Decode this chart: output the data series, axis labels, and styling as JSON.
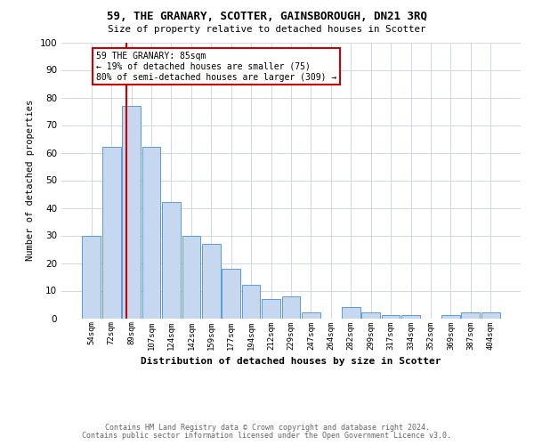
{
  "title": "59, THE GRANARY, SCOTTER, GAINSBOROUGH, DN21 3RQ",
  "subtitle": "Size of property relative to detached houses in Scotter",
  "xlabel": "Distribution of detached houses by size in Scotter",
  "ylabel": "Number of detached properties",
  "footnote1": "Contains HM Land Registry data © Crown copyright and database right 2024.",
  "footnote2": "Contains public sector information licensed under the Open Government Licence v3.0.",
  "categories": [
    "54sqm",
    "72sqm",
    "89sqm",
    "107sqm",
    "124sqm",
    "142sqm",
    "159sqm",
    "177sqm",
    "194sqm",
    "212sqm",
    "229sqm",
    "247sqm",
    "264sqm",
    "282sqm",
    "299sqm",
    "317sqm",
    "334sqm",
    "352sqm",
    "369sqm",
    "387sqm",
    "404sqm"
  ],
  "values": [
    30,
    62,
    77,
    62,
    42,
    30,
    27,
    18,
    12,
    7,
    8,
    2,
    0,
    4,
    2,
    1,
    1,
    0,
    1,
    2,
    2
  ],
  "bar_color": "#c5d8f0",
  "bar_edge_color": "#5b9bd5",
  "reference_line_color": "#cc0000",
  "annotation_line1": "59 THE GRANARY: 85sqm",
  "annotation_line2": "← 19% of detached houses are smaller (75)",
  "annotation_line3": "80% of semi-detached houses are larger (309) →",
  "annotation_box_color": "#cc0000",
  "ylim": [
    0,
    100
  ],
  "yticks": [
    0,
    10,
    20,
    30,
    40,
    50,
    60,
    70,
    80,
    90,
    100
  ],
  "grid_color": "#d0d8e8",
  "footnote_color": "#666666"
}
